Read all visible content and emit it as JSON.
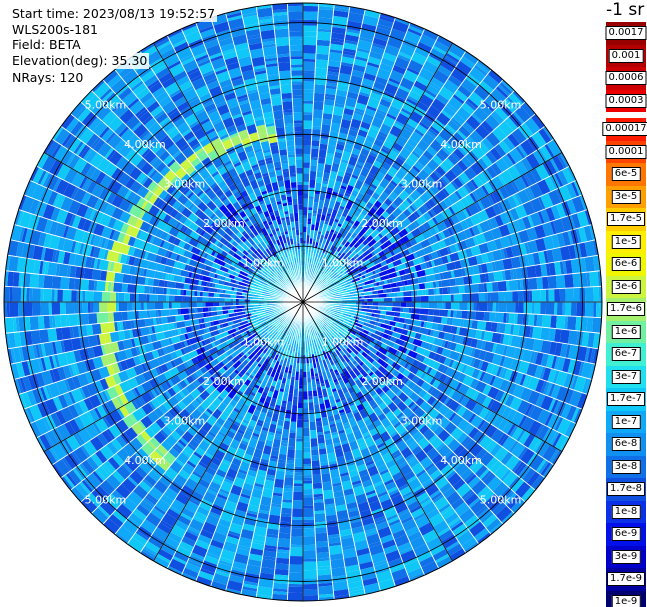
{
  "info": {
    "start_time": "Start time: 2023/08/13 19:52:57",
    "instrument": "WLS200s-181",
    "field": "Field: BETA",
    "elevation": "Elevation(deg): 35.30",
    "nrays": "NRays: 120"
  },
  "colorbar": {
    "unit": "-1 sr",
    "upper_levels": [
      {
        "label": "0.0017",
        "color": "#990000"
      },
      {
        "label": "0.001",
        "color": "#b30000"
      },
      {
        "label": "0.0006",
        "color": "#cc0000"
      },
      {
        "label": "0.0003",
        "color": "#ee0000"
      }
    ],
    "lower_levels": [
      {
        "label": "0.00017",
        "color": "#ff1a00"
      },
      {
        "label": "0.0001",
        "color": "#ff4400"
      },
      {
        "label": "6e-5",
        "color": "#ff7700"
      },
      {
        "label": "3e-5",
        "color": "#ffa000"
      },
      {
        "label": "1.7e-5",
        "color": "#ffcc00"
      },
      {
        "label": "1e-5",
        "color": "#ffee00"
      },
      {
        "label": "6e-6",
        "color": "#f0f500"
      },
      {
        "label": "3e-6",
        "color": "#ccf540"
      },
      {
        "label": "1.7e-6",
        "color": "#a6f070"
      },
      {
        "label": "1e-6",
        "color": "#70f0a0"
      },
      {
        "label": "6e-7",
        "color": "#40f0d0"
      },
      {
        "label": "3e-7",
        "color": "#20e0f0"
      },
      {
        "label": "1.7e-7",
        "color": "#10c8f8"
      },
      {
        "label": "1e-7",
        "color": "#10a8f8"
      },
      {
        "label": "6e-8",
        "color": "#1090f0"
      },
      {
        "label": "3e-8",
        "color": "#1070e8"
      },
      {
        "label": "1.7e-8",
        "color": "#1050e0"
      },
      {
        "label": "1e-8",
        "color": "#0a30e8"
      },
      {
        "label": "6e-9",
        "color": "#0010e8"
      },
      {
        "label": "3e-9",
        "color": "#0000cc"
      },
      {
        "label": "1.7e-9",
        "color": "#0000a0"
      },
      {
        "label": "1e-9",
        "color": "#000070"
      }
    ]
  },
  "chart_data": {
    "type": "heatmap",
    "projection": "polar-ppi",
    "range_rings_km": [
      1,
      2,
      3,
      4,
      5
    ],
    "ring_labels": [
      "1.00km",
      "2.00km",
      "3.00km",
      "4.00km",
      "5.00km"
    ],
    "max_range_km": 5.35,
    "spoke_angles_deg": [
      0,
      30,
      60,
      90,
      120,
      150,
      180,
      210,
      240,
      270,
      300,
      330
    ],
    "n_rays": 120,
    "gate_spacing_km": 0.05,
    "dominant_level": "6e-8",
    "features": [
      {
        "name": "aerosol-arc",
        "range_km": [
          3.0,
          4.0
        ],
        "bearing_deg": [
          220,
          350
        ],
        "level": "1.7e-6"
      },
      {
        "name": "inner-core",
        "range_km": [
          0.0,
          1.0
        ],
        "level": "1.7e-7"
      },
      {
        "name": "low-return-ring",
        "range_km": [
          1.0,
          2.2
        ],
        "level": "1e-8"
      }
    ]
  }
}
